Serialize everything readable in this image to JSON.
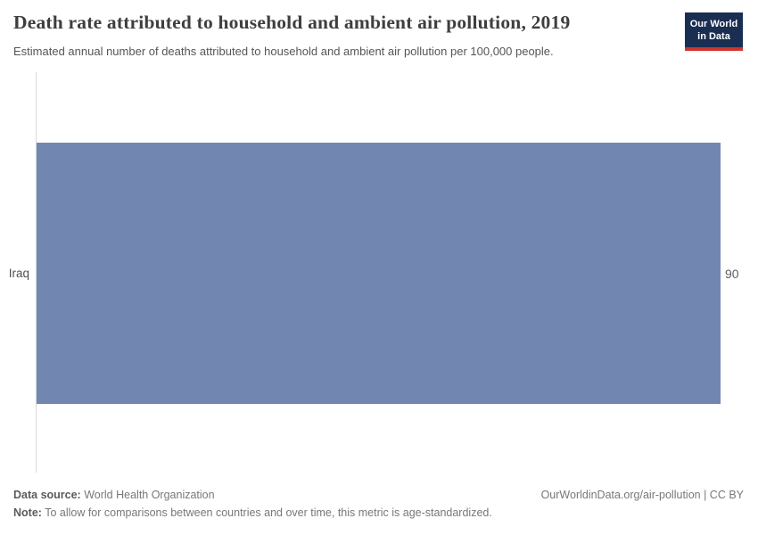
{
  "header": {
    "title": "Death rate attributed to household and ambient air pollution, 2019",
    "subtitle": "Estimated annual number of deaths attributed to household and ambient air pollution per 100,000 people.",
    "logo": {
      "line1": "Our World",
      "line2": "in Data",
      "bg_color": "#1a2e52",
      "accent_color": "#d0342c"
    }
  },
  "chart": {
    "category_label": "Iraq",
    "value_label": "90",
    "bar_color": "#7187b1",
    "axis_color": "#dbdbdb"
  },
  "chart_data": {
    "type": "bar",
    "orientation": "horizontal",
    "categories": [
      "Iraq"
    ],
    "values": [
      90
    ],
    "value_labels": [
      "90"
    ],
    "title": "Death rate attributed to household and ambient air pollution, 2019",
    "subtitle": "Estimated annual number of deaths attributed to household and ambient air pollution per 100,000 people.",
    "xlabel": "",
    "ylabel": "",
    "xlim": [
      0,
      90
    ],
    "grid": false,
    "legend": false
  },
  "footer": {
    "datasource_label": "Data source:",
    "datasource_value": "World Health Organization",
    "note_label": "Note:",
    "note_value": "To allow for comparisons between countries and over time, this metric is age-standardized.",
    "license": "OurWorldinData.org/air-pollution | CC BY"
  }
}
